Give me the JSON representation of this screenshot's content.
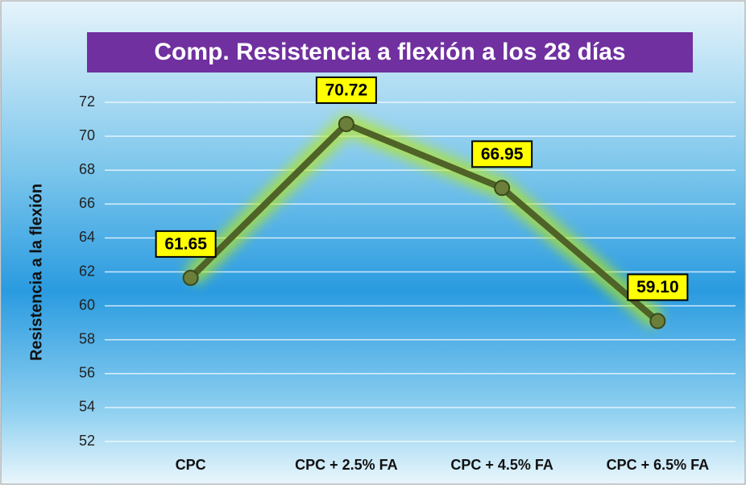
{
  "chart_data": {
    "type": "line",
    "title": "Comp. Resistencia a flexión a los 28 días",
    "y_label": "Resistencia a la flexión",
    "categories": [
      "CPC",
      "CPC + 2.5% FA",
      "CPC + 4.5% FA",
      "CPC + 6.5% FA"
    ],
    "values": [
      61.65,
      70.72,
      66.95,
      59.1
    ],
    "value_labels": [
      "61.65",
      "70.72",
      "66.95",
      "59.10"
    ],
    "color": "#4f6228",
    "ylim": [
      52,
      72
    ],
    "yticks": [
      52,
      54,
      56,
      58,
      60,
      62,
      64,
      66,
      68,
      70,
      72
    ],
    "grid": true
  }
}
